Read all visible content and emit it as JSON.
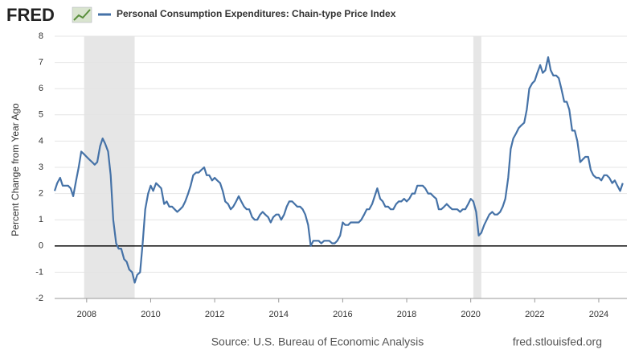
{
  "brand": "FRED",
  "chart_data": {
    "type": "line",
    "y_label": "Percent Change from Year Ago",
    "source": "Source: U.S. Bureau of Economic Analysis",
    "site": "fred.stlouisfed.org",
    "xlim": [
      2007,
      2024.88
    ],
    "xticks": [
      2008,
      2010,
      2012,
      2014,
      2016,
      2018,
      2020,
      2022,
      2024
    ],
    "ylim": [
      -2,
      8
    ],
    "yticks": [
      -2,
      -1,
      0,
      1,
      2,
      3,
      4,
      5,
      6,
      7,
      8
    ],
    "grid": true,
    "recessions": [
      [
        2007.92,
        2009.5
      ],
      [
        2020.08,
        2020.33
      ]
    ],
    "x": [
      2007,
      2007.08,
      2007.17,
      2007.25,
      2007.33,
      2007.42,
      2007.5,
      2007.58,
      2007.67,
      2007.75,
      2007.83,
      2007.92,
      2008,
      2008.08,
      2008.17,
      2008.25,
      2008.33,
      2008.42,
      2008.5,
      2008.58,
      2008.67,
      2008.75,
      2008.83,
      2008.92,
      2009,
      2009.08,
      2009.17,
      2009.25,
      2009.33,
      2009.42,
      2009.5,
      2009.58,
      2009.67,
      2009.75,
      2009.83,
      2009.92,
      2010,
      2010.08,
      2010.17,
      2010.25,
      2010.33,
      2010.42,
      2010.5,
      2010.58,
      2010.67,
      2010.75,
      2010.83,
      2010.92,
      2011,
      2011.08,
      2011.17,
      2011.25,
      2011.33,
      2011.42,
      2011.5,
      2011.58,
      2011.67,
      2011.75,
      2011.83,
      2011.92,
      2012,
      2012.08,
      2012.17,
      2012.25,
      2012.33,
      2012.42,
      2012.5,
      2012.58,
      2012.67,
      2012.75,
      2012.83,
      2012.92,
      2013,
      2013.08,
      2013.17,
      2013.25,
      2013.33,
      2013.42,
      2013.5,
      2013.58,
      2013.67,
      2013.75,
      2013.83,
      2013.92,
      2014,
      2014.08,
      2014.17,
      2014.25,
      2014.33,
      2014.42,
      2014.5,
      2014.58,
      2014.67,
      2014.75,
      2014.83,
      2014.92,
      2015,
      2015.08,
      2015.17,
      2015.25,
      2015.33,
      2015.42,
      2015.5,
      2015.58,
      2015.67,
      2015.75,
      2015.83,
      2015.92,
      2016,
      2016.08,
      2016.17,
      2016.25,
      2016.33,
      2016.42,
      2016.5,
      2016.58,
      2016.67,
      2016.75,
      2016.83,
      2016.92,
      2017,
      2017.08,
      2017.17,
      2017.25,
      2017.33,
      2017.42,
      2017.5,
      2017.58,
      2017.67,
      2017.75,
      2017.83,
      2017.92,
      2018,
      2018.08,
      2018.17,
      2018.25,
      2018.33,
      2018.42,
      2018.5,
      2018.58,
      2018.67,
      2018.75,
      2018.83,
      2018.92,
      2019,
      2019.08,
      2019.17,
      2019.25,
      2019.33,
      2019.42,
      2019.5,
      2019.58,
      2019.67,
      2019.75,
      2019.83,
      2019.92,
      2020,
      2020.08,
      2020.17,
      2020.25,
      2020.33,
      2020.42,
      2020.5,
      2020.58,
      2020.67,
      2020.75,
      2020.83,
      2020.92,
      2021,
      2021.08,
      2021.17,
      2021.25,
      2021.33,
      2021.42,
      2021.5,
      2021.58,
      2021.67,
      2021.75,
      2021.83,
      2021.92,
      2022,
      2022.08,
      2022.17,
      2022.25,
      2022.33,
      2022.42,
      2022.5,
      2022.58,
      2022.67,
      2022.75,
      2022.83,
      2022.92,
      2023,
      2023.08,
      2023.17,
      2023.25,
      2023.33,
      2023.42,
      2023.5,
      2023.58,
      2023.67,
      2023.75,
      2023.83,
      2023.92,
      2024,
      2024.08,
      2024.17,
      2024.25,
      2024.33,
      2024.42,
      2024.5,
      2024.58,
      2024.67,
      2024.75
    ],
    "series": [
      {
        "name": "Personal Consumption Expenditures: Chain-type Price Index",
        "color": "#4572a7",
        "values": [
          2.1,
          2.4,
          2.6,
          2.3,
          2.3,
          2.3,
          2.2,
          1.9,
          2.5,
          3.0,
          3.6,
          3.5,
          3.4,
          3.3,
          3.2,
          3.1,
          3.2,
          3.8,
          4.1,
          3.9,
          3.6,
          2.7,
          1.0,
          0.1,
          -0.1,
          -0.1,
          -0.5,
          -0.6,
          -0.9,
          -1.0,
          -1.4,
          -1.1,
          -1.0,
          0.1,
          1.4,
          2.0,
          2.3,
          2.1,
          2.4,
          2.3,
          2.2,
          1.6,
          1.7,
          1.5,
          1.5,
          1.4,
          1.3,
          1.4,
          1.5,
          1.7,
          2.0,
          2.3,
          2.7,
          2.8,
          2.8,
          2.9,
          3.0,
          2.7,
          2.7,
          2.5,
          2.6,
          2.5,
          2.4,
          2.1,
          1.7,
          1.6,
          1.4,
          1.5,
          1.7,
          1.9,
          1.7,
          1.5,
          1.4,
          1.4,
          1.1,
          1.0,
          1.0,
          1.2,
          1.3,
          1.2,
          1.1,
          0.9,
          1.1,
          1.2,
          1.2,
          1.0,
          1.2,
          1.5,
          1.7,
          1.7,
          1.6,
          1.5,
          1.5,
          1.4,
          1.2,
          0.8,
          0.0,
          0.2,
          0.2,
          0.2,
          0.1,
          0.2,
          0.2,
          0.2,
          0.1,
          0.1,
          0.2,
          0.4,
          0.9,
          0.8,
          0.8,
          0.9,
          0.9,
          0.9,
          0.9,
          1.0,
          1.2,
          1.4,
          1.4,
          1.6,
          1.9,
          2.2,
          1.8,
          1.7,
          1.5,
          1.5,
          1.4,
          1.4,
          1.6,
          1.7,
          1.7,
          1.8,
          1.7,
          1.8,
          2.0,
          2.0,
          2.3,
          2.3,
          2.3,
          2.2,
          2.0,
          2.0,
          1.9,
          1.8,
          1.4,
          1.4,
          1.5,
          1.6,
          1.5,
          1.4,
          1.4,
          1.4,
          1.3,
          1.4,
          1.4,
          1.6,
          1.8,
          1.7,
          1.3,
          0.4,
          0.5,
          0.8,
          1.0,
          1.2,
          1.3,
          1.2,
          1.2,
          1.3,
          1.5,
          1.8,
          2.6,
          3.7,
          4.1,
          4.3,
          4.5,
          4.6,
          4.7,
          5.2,
          6.0,
          6.2,
          6.3,
          6.6,
          6.9,
          6.6,
          6.7,
          7.2,
          6.7,
          6.5,
          6.5,
          6.4,
          6.0,
          5.5,
          5.5,
          5.2,
          4.4,
          4.4,
          4.0,
          3.2,
          3.3,
          3.4,
          3.4,
          2.9,
          2.7,
          2.6,
          2.6,
          2.5,
          2.7,
          2.7,
          2.6,
          2.4,
          2.5,
          2.3,
          2.1,
          2.4
        ]
      }
    ]
  }
}
